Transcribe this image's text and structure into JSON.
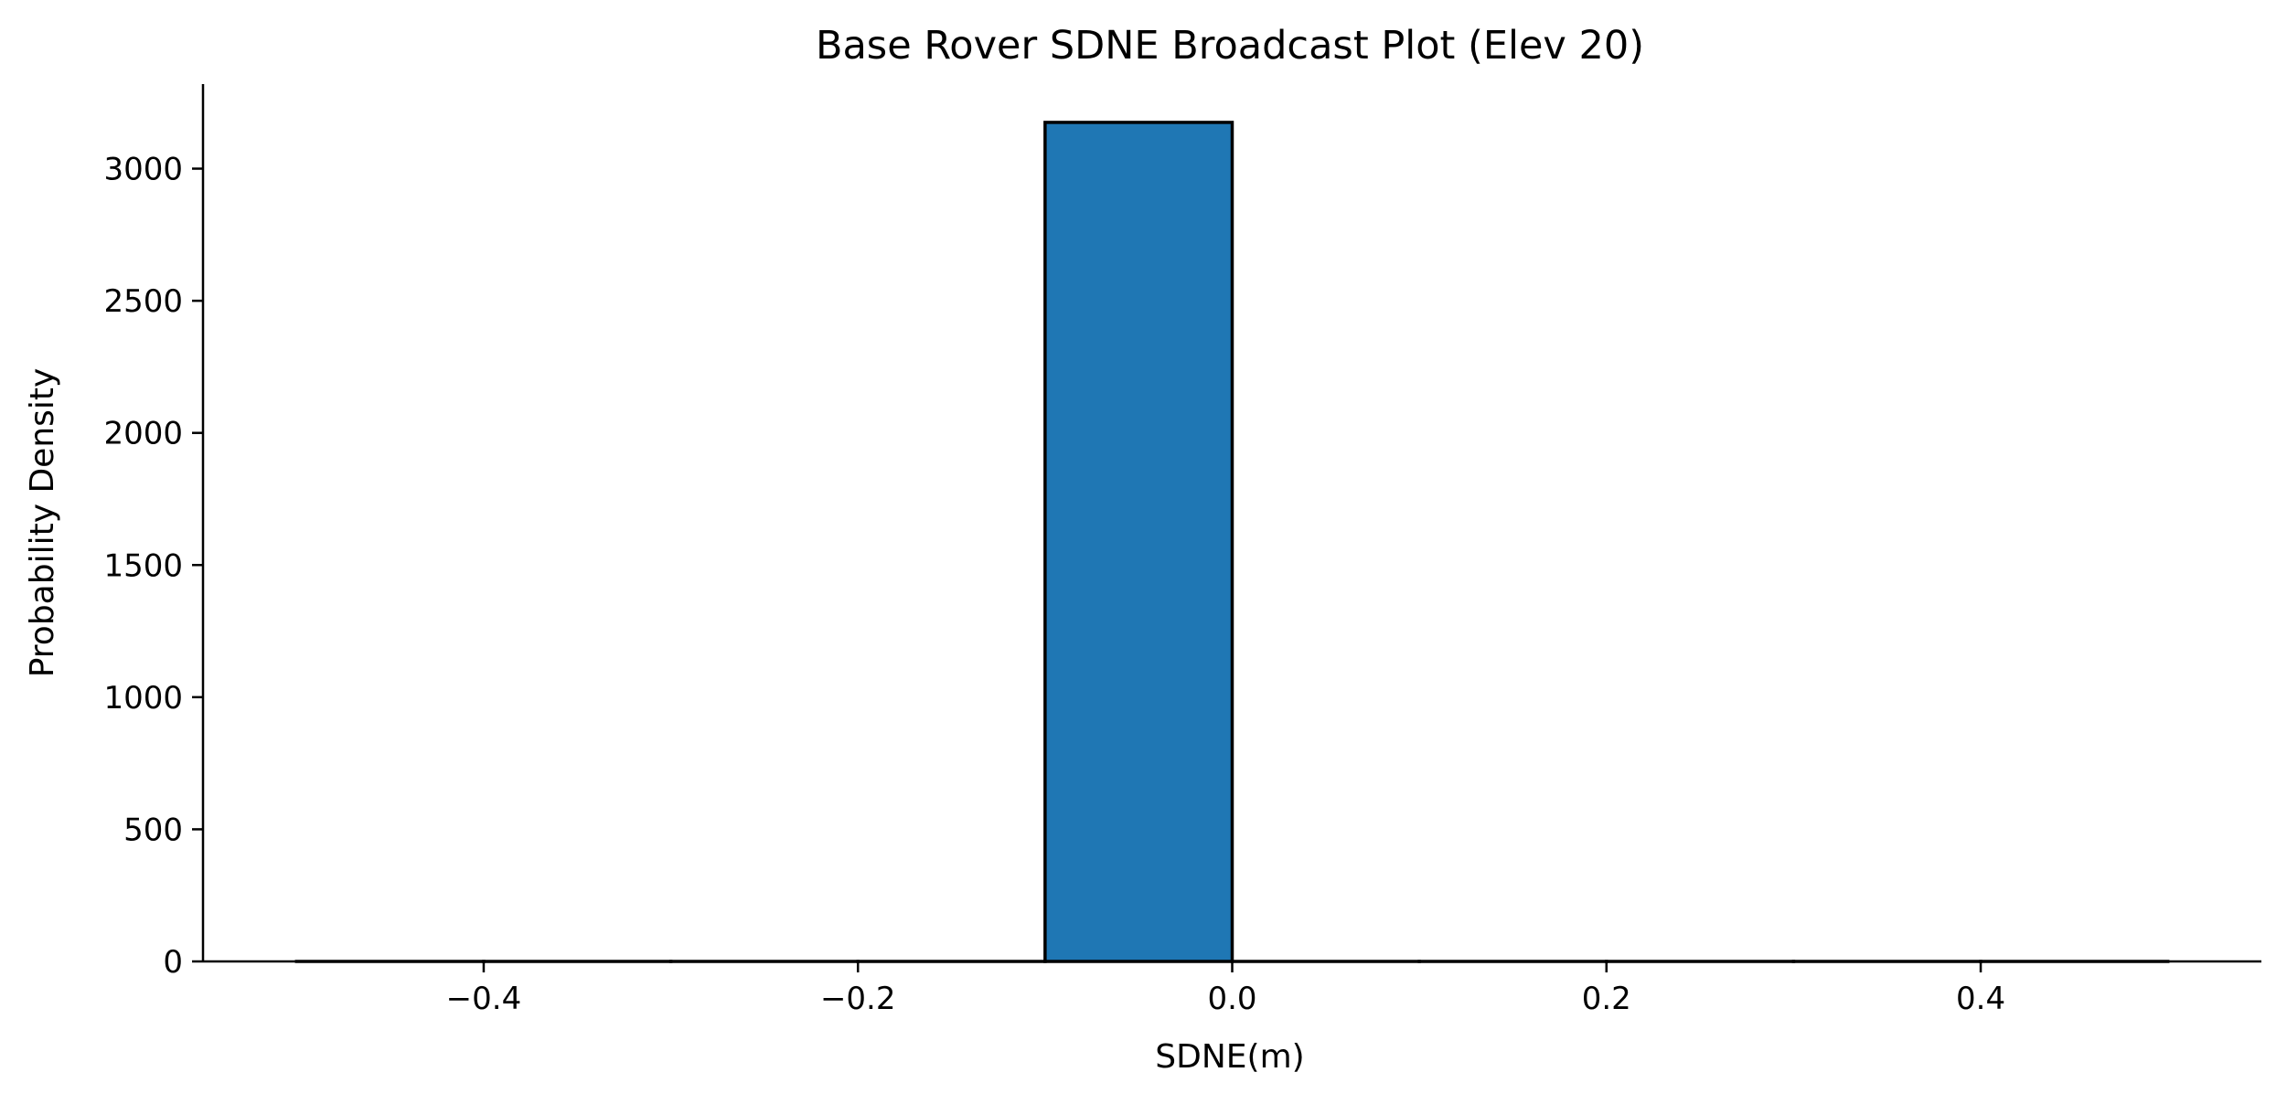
{
  "chart_data": {
    "type": "bar",
    "title": "Base Rover SDNE Broadcast Plot (Elev 20)",
    "xlabel": "SDNE(m)",
    "ylabel": "Probability Density",
    "xlim": [
      -0.55,
      0.55
    ],
    "ylim": [
      0,
      3320
    ],
    "grid": false,
    "bar_color": "#1f77b4",
    "edge_color": "#000000",
    "x_ticks": [
      {
        "value": -0.4,
        "label": "−0.4"
      },
      {
        "value": -0.2,
        "label": "−0.2"
      },
      {
        "value": 0.0,
        "label": "0.0"
      },
      {
        "value": 0.2,
        "label": "0.2"
      },
      {
        "value": 0.4,
        "label": "0.4"
      }
    ],
    "y_ticks": [
      {
        "value": 0,
        "label": "0"
      },
      {
        "value": 500,
        "label": "500"
      },
      {
        "value": 1000,
        "label": "1000"
      },
      {
        "value": 1500,
        "label": "1500"
      },
      {
        "value": 2000,
        "label": "2000"
      },
      {
        "value": 2500,
        "label": "2500"
      },
      {
        "value": 3000,
        "label": "3000"
      }
    ],
    "bins": [
      {
        "x0": -0.5,
        "x1": -0.4,
        "value": 0
      },
      {
        "x0": -0.4,
        "x1": -0.3,
        "value": 0
      },
      {
        "x0": -0.3,
        "x1": -0.2,
        "value": 0
      },
      {
        "x0": -0.2,
        "x1": -0.1,
        "value": 0
      },
      {
        "x0": -0.1,
        "x1": 0.0,
        "value": 3175
      },
      {
        "x0": 0.0,
        "x1": 0.1,
        "value": 0
      },
      {
        "x0": 0.1,
        "x1": 0.2,
        "value": 0
      },
      {
        "x0": 0.2,
        "x1": 0.3,
        "value": 0
      },
      {
        "x0": 0.3,
        "x1": 0.4,
        "value": 0
      },
      {
        "x0": 0.4,
        "x1": 0.5,
        "value": 0
      }
    ]
  }
}
